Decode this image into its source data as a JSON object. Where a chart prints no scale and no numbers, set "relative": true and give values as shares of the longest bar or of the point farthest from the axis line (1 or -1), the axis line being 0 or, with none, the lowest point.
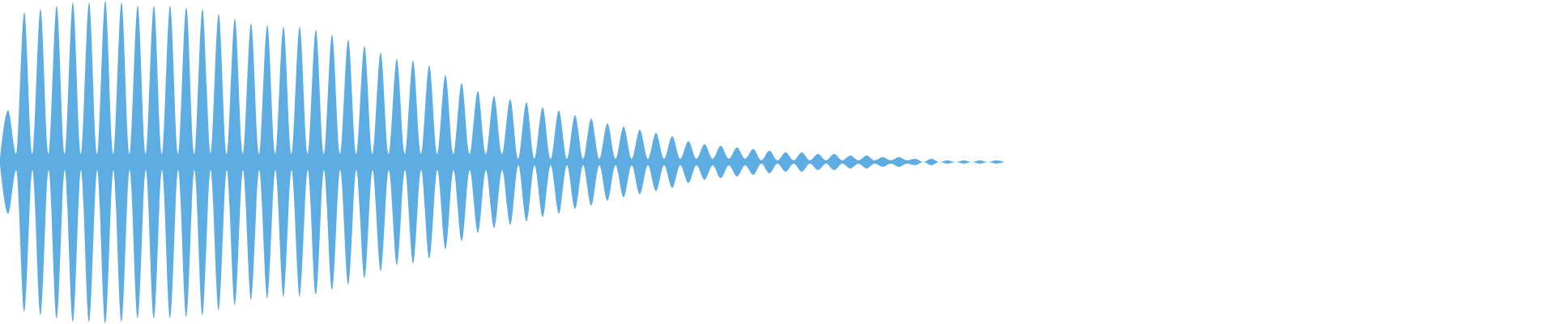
{
  "chart_data": {
    "type": "area",
    "relative": true,
    "color": "#5dade2",
    "categories": [
      null,
      null,
      null,
      null,
      null,
      null,
      null,
      null,
      null,
      null,
      null,
      null,
      null,
      null,
      null,
      null,
      null,
      null,
      null,
      null,
      null,
      null,
      null,
      null,
      null,
      null,
      null,
      null,
      null,
      null,
      null,
      null,
      null,
      null,
      null,
      null,
      null,
      null,
      null,
      null,
      null,
      null,
      null,
      null,
      null,
      null,
      null,
      null,
      null,
      null,
      null,
      null,
      null,
      null,
      null,
      null,
      null,
      null,
      null,
      null,
      null,
      null,
      null,
      null,
      null,
      null,
      null,
      null,
      null,
      null,
      null,
      null,
      null,
      null,
      null,
      null,
      null,
      null,
      null,
      null,
      null,
      null,
      null,
      null,
      null,
      null,
      null,
      null,
      null,
      null,
      null,
      null,
      null,
      null,
      null,
      null,
      null,
      null,
      null,
      null,
      null,
      null,
      null,
      null,
      null,
      null,
      null,
      null,
      null,
      null,
      null,
      null,
      null,
      null,
      null,
      null,
      null,
      null,
      null,
      null,
      null,
      null,
      null,
      null,
      null,
      null,
      null,
      null,
      null,
      null,
      null,
      null,
      null,
      null,
      null,
      null,
      null,
      null,
      null,
      null,
      null,
      null,
      null,
      null,
      null,
      null,
      null,
      null,
      null,
      null,
      null,
      null,
      null,
      null,
      null,
      null,
      null,
      null,
      null,
      null,
      null,
      null,
      null,
      null,
      null,
      null,
      null,
      null,
      null,
      null,
      null,
      null,
      null,
      null,
      null,
      null,
      null,
      null,
      null,
      null,
      null,
      null,
      null,
      null,
      null,
      null,
      null,
      null,
      null,
      null,
      null,
      null,
      null
    ],
    "values": [
      0.02,
      0.32,
      0.05,
      0.93,
      0.05,
      0.95,
      0.05,
      0.97,
      0.05,
      0.99,
      0.05,
      0.99,
      0.05,
      1,
      0.05,
      0.99,
      0.05,
      0.97,
      0.05,
      0.97,
      0.05,
      0.97,
      0.05,
      0.96,
      0.05,
      0.95,
      0.05,
      0.92,
      0.05,
      0.89,
      0.05,
      0.86,
      0.05,
      0.85,
      0.05,
      0.84,
      0.05,
      0.84,
      0.05,
      0.82,
      0.05,
      0.79,
      0.05,
      0.76,
      0.05,
      0.72,
      0.05,
      0.68,
      0.05,
      0.64,
      0.05,
      0.63,
      0.05,
      0.6,
      0.05,
      0.54,
      0.05,
      0.49,
      0.05,
      0.44,
      0.05,
      0.41,
      0.05,
      0.39,
      0.02,
      0.37,
      0.02,
      0.34,
      0.02,
      0.32,
      0.02,
      0.29,
      0.02,
      0.27,
      0.02,
      0.24,
      0.02,
      0.22,
      0.02,
      0.2,
      0.02,
      0.18,
      0.02,
      0.16,
      0.02,
      0.13,
      0.02,
      0.11,
      0.02,
      0.1,
      0.02,
      0.09,
      0.02,
      0.08,
      0.01,
      0.07,
      0.01,
      0.06,
      0.01,
      0.06,
      0.01,
      0.05,
      0.01,
      0.05,
      0.01,
      0.04,
      0.01,
      0.04,
      0.01,
      0.03,
      0.01,
      0.03,
      0.01,
      0.02,
      0,
      0.02,
      0,
      0.01,
      0,
      0.01,
      0,
      0.01,
      0,
      0.01,
      0,
      null,
      null,
      null,
      null,
      null,
      null,
      null,
      null,
      null,
      null,
      null,
      null,
      null,
      null,
      null,
      null,
      null,
      null,
      null,
      null,
      null,
      null,
      null,
      null,
      null,
      null,
      null,
      null,
      null,
      null,
      null,
      null,
      null,
      null,
      null,
      null,
      null,
      null,
      null,
      null,
      null,
      null,
      null,
      null,
      null,
      null,
      null,
      null,
      null,
      null,
      null,
      null,
      null,
      null,
      null,
      null,
      null,
      null,
      null,
      null,
      null,
      null,
      null,
      null,
      null,
      null,
      null,
      null
    ]
  }
}
